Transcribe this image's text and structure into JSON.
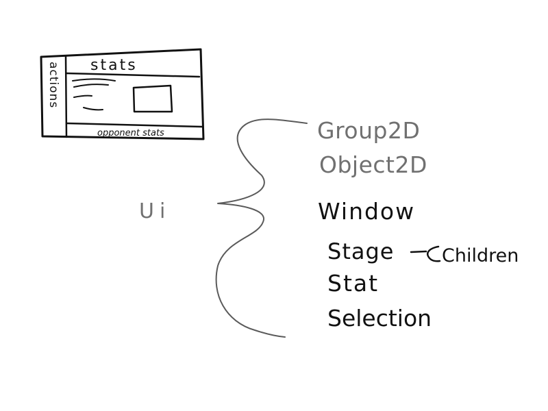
{
  "sketch": {
    "panel": {
      "side_label": "actions",
      "top_label": "stats",
      "bottom_label": "opponent stats"
    },
    "tree": {
      "root_label": "Ui",
      "branches": [
        "Group2D",
        "Object2D"
      ],
      "children": [
        "Window",
        "Stage",
        "Stat",
        "Selection"
      ],
      "stage_note": "Children"
    }
  }
}
